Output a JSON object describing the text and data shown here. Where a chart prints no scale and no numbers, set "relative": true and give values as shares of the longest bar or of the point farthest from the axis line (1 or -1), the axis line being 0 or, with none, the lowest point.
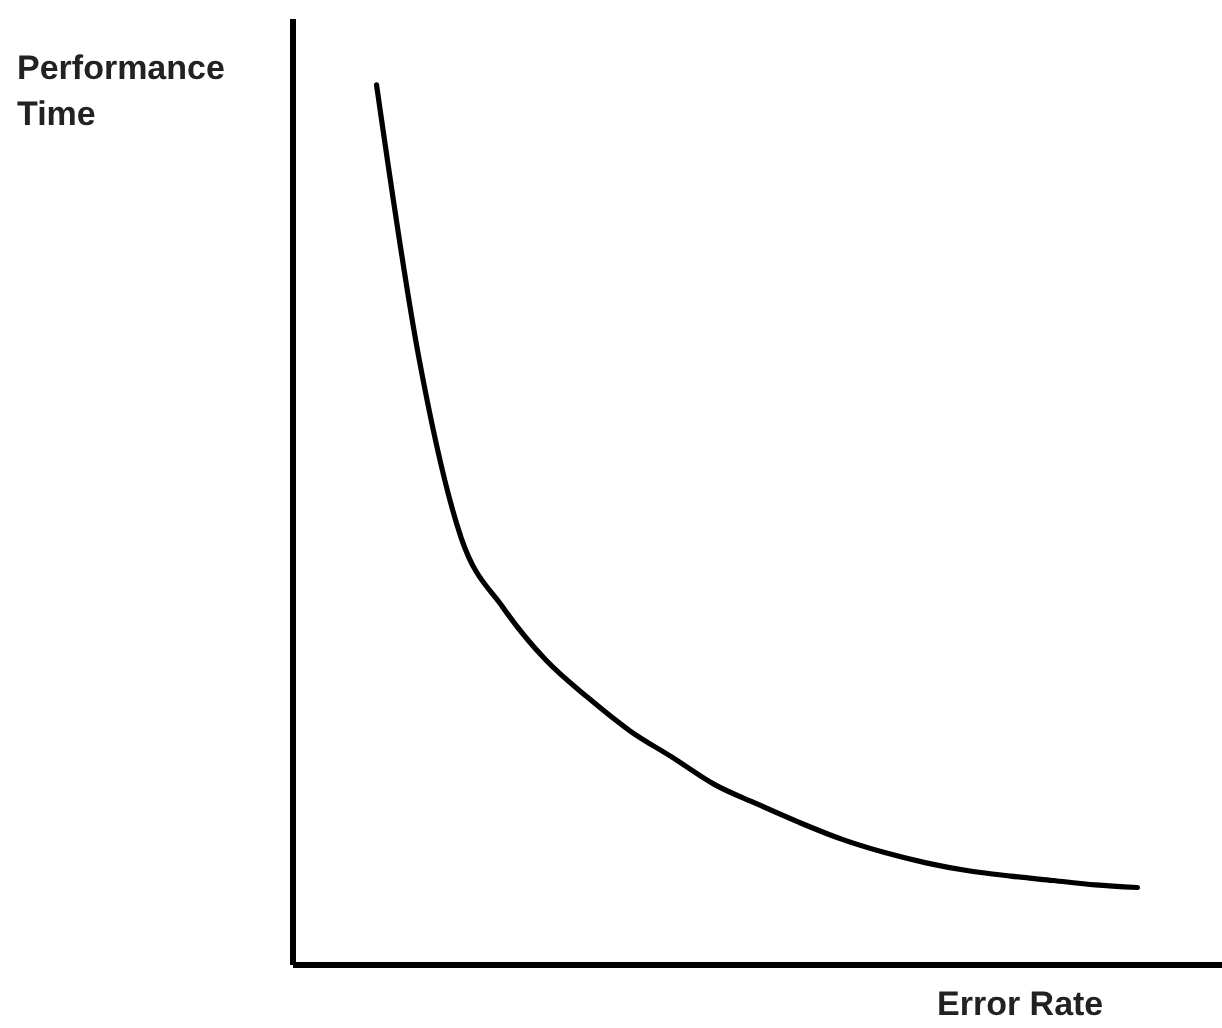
{
  "chart_data": {
    "type": "line",
    "relative": true,
    "xlabel": "Error Rate",
    "ylabel": "Performance Time",
    "categories": [
      null,
      null,
      null,
      null,
      null,
      null,
      null,
      null,
      null,
      null,
      null,
      null,
      null,
      null,
      null,
      null,
      null,
      null,
      null,
      null,
      null,
      null,
      null
    ],
    "series": [
      {
        "color": "#000000",
        "values": [
          null,
          null,
          1,
          0.69,
          0.485,
          0.405,
          0.346,
          0.303,
          0.265,
          0.235,
          0.204,
          0.182,
          0.161,
          0.142,
          0.127,
          0.115,
          0.106,
          0.1,
          0.095,
          0.09,
          0.087,
          null,
          null
        ]
      }
    ],
    "grid": false,
    "marker": "none"
  }
}
